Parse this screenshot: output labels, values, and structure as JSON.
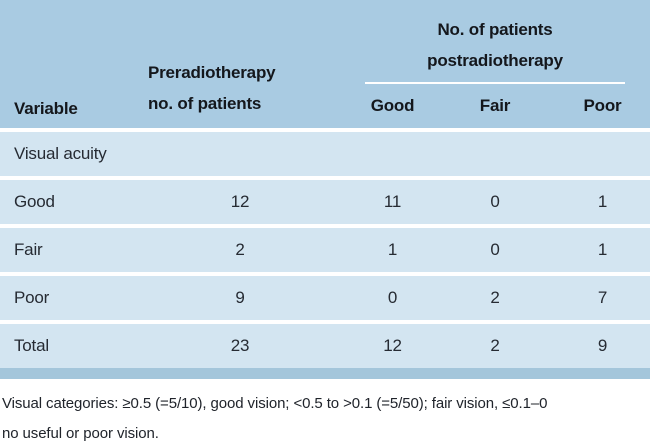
{
  "colors": {
    "page_bg": "#ffffff",
    "header_bg": "#a9cbe2",
    "row_bg": "#d3e5f1",
    "bottom_bar": "#a4c6db",
    "separator": "#ffffff",
    "header_text": "#14171c",
    "body_text": "#262b33",
    "footnote_text": "#20242b"
  },
  "table": {
    "columns": {
      "variable_label": "Variable",
      "pre_line1": "Preradiotherapy",
      "pre_line2": "no. of patients",
      "post_group_line1": "No. of patients",
      "post_group_line2": "postradiotherapy",
      "post_subcolumns": [
        "Good",
        "Fair",
        "Poor"
      ]
    },
    "section_row_label": "Visual acuity",
    "rows": [
      {
        "label": "Good",
        "pre": "12",
        "good": "11",
        "fair": "0",
        "poor": "1"
      },
      {
        "label": "Fair",
        "pre": "2",
        "good": "1",
        "fair": "0",
        "poor": "1"
      },
      {
        "label": "Poor",
        "pre": "9",
        "good": "0",
        "fair": "2",
        "poor": "7"
      },
      {
        "label": "Total",
        "pre": "23",
        "good": "12",
        "fair": "2",
        "poor": "9"
      }
    ]
  },
  "footnote": {
    "line1": "Visual categories: ≥0.5 (=5/10), good vision; <0.5 to >0.1 (=5/50); fair vision, ≤0.1–0",
    "line2": "no useful or poor vision."
  }
}
